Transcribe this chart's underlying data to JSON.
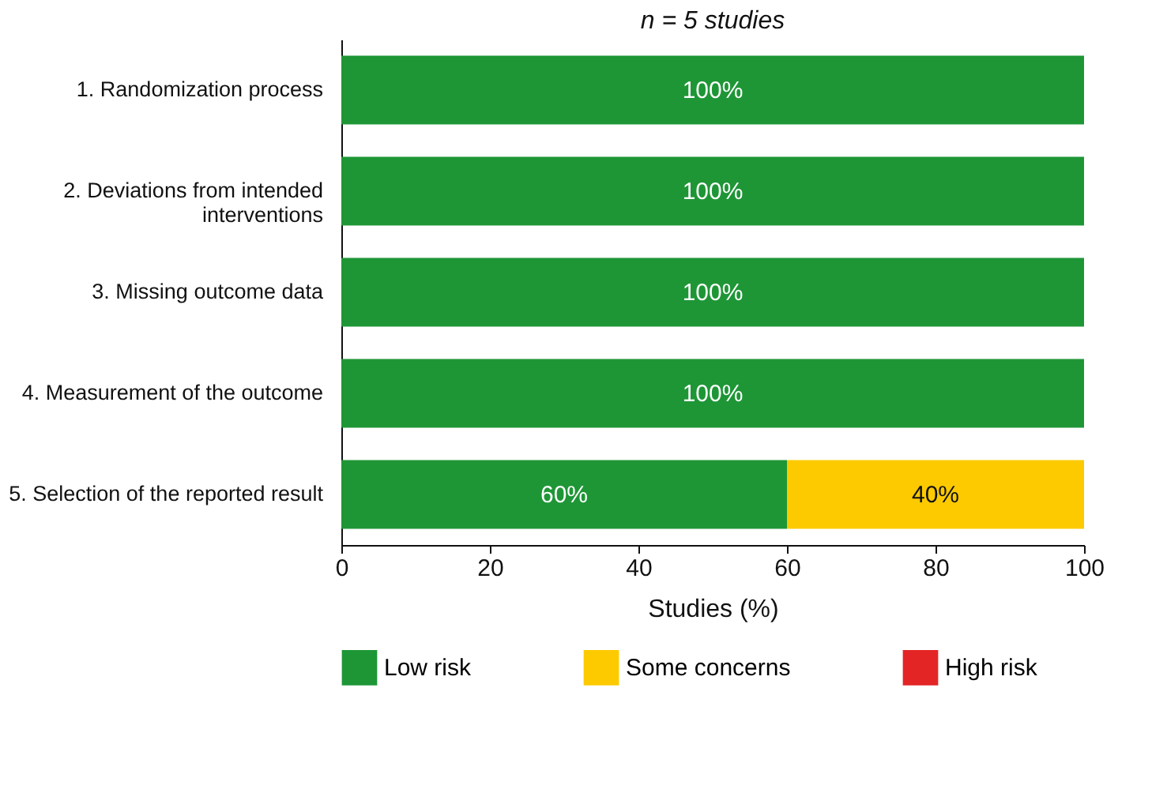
{
  "chart_data": {
    "type": "bar",
    "orientation": "horizontal",
    "stacked": true,
    "title": "n = 5 studies",
    "xlabel": "Studies (%)",
    "categories": [
      "1. Randomization process",
      "2. Deviations from intended interventions",
      "3. Missing outcome data",
      "4. Measurement of the outcome",
      "5. Selection of the reported result"
    ],
    "series": [
      {
        "name": "Low risk",
        "color": "#1e9636",
        "values": [
          100,
          100,
          100,
          100,
          60
        ],
        "value_labels": [
          "100%",
          "100%",
          "100%",
          "100%",
          "60%"
        ]
      },
      {
        "name": "Some concerns",
        "color": "#fdca00",
        "values": [
          0,
          0,
          0,
          0,
          40
        ],
        "value_labels": [
          null,
          null,
          null,
          null,
          "40%"
        ]
      },
      {
        "name": "High risk",
        "color": "#e32526",
        "values": [
          0,
          0,
          0,
          0,
          0
        ],
        "value_labels": [
          null,
          null,
          null,
          null,
          null
        ]
      }
    ],
    "xlim": [
      0,
      100
    ],
    "xticks": [
      0,
      20,
      40,
      60,
      80,
      100
    ],
    "grid": false,
    "legend": "bottom"
  }
}
